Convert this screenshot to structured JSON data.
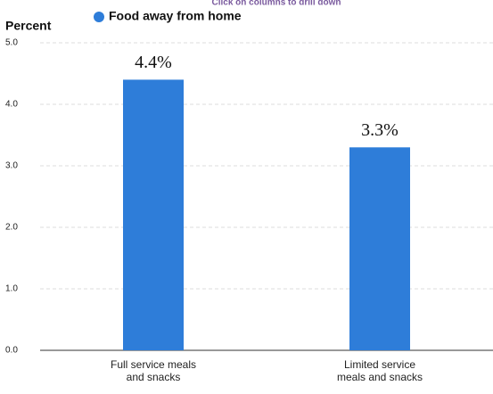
{
  "chart_data": {
    "type": "bar",
    "note": "Click on columns to drill down",
    "y_label": "Percent",
    "categories": [
      "Full service meals and snacks",
      "Limited service meals and snacks"
    ],
    "series": [
      {
        "name": "Food away from home",
        "color": "#2e7dd9",
        "values": [
          4.4,
          3.3
        ],
        "value_labels": [
          "4.4%",
          "3.3%"
        ]
      }
    ],
    "ylim": [
      0,
      5
    ],
    "yticks": [
      {
        "value": 0,
        "label": "0.0"
      },
      {
        "value": 1,
        "label": "1.0"
      },
      {
        "value": 2,
        "label": "2.0"
      },
      {
        "value": 3,
        "label": "3.0"
      },
      {
        "value": 4,
        "label": "4.0"
      },
      {
        "value": 5,
        "label": "5.0"
      }
    ],
    "grid": true
  }
}
